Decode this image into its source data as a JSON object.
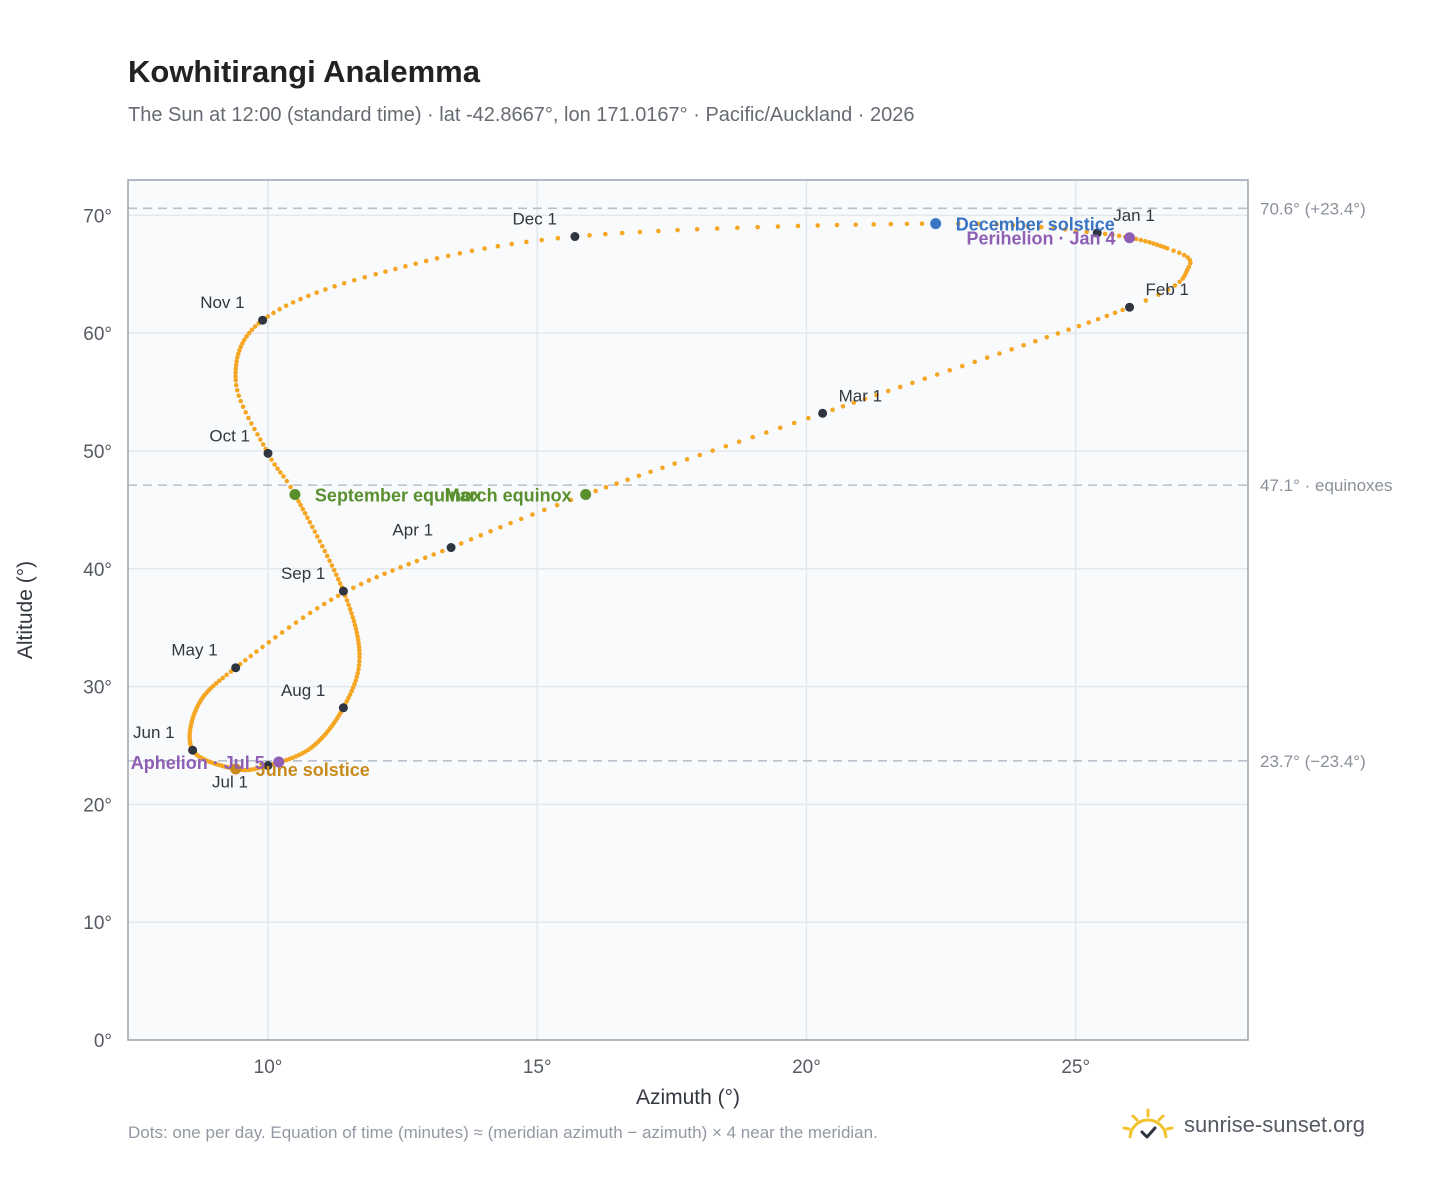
{
  "header": {
    "title": "Kowhitirangi Analemma",
    "subtitle": "The Sun at 12:00 (standard time) · lat -42.8667°, lon 171.0167° · Pacific/Auckland · 2026"
  },
  "footer": {
    "note": "Dots: one per day. Equation of time (minutes) ≈ (meridian azimuth − azimuth) × 4 near the meridian.",
    "brand": "sunrise-sunset.org",
    "brand_icon": "sun-checkmark-icon"
  },
  "colors": {
    "curve": "#f5a623",
    "month_dot": "#2f3540",
    "december_solstice": "#3a75c4",
    "june_solstice": "#c98a1a",
    "equinox": "#5a8f2e",
    "apsis": "#8e5fb5",
    "reference_line": "#b8c0c9",
    "plot_background": "#f8fafc",
    "frame": "#9aa3ae"
  },
  "chart_data": {
    "type": "scatter",
    "xlabel": "Azimuth (°)",
    "ylabel": "Altitude (°)",
    "xlim": [
      7.4,
      28.2
    ],
    "ylim": [
      0,
      73
    ],
    "x_ticks": [
      10,
      15,
      20,
      25
    ],
    "x_tick_labels": [
      "10°",
      "15°",
      "20°",
      "25°"
    ],
    "y_ticks": [
      0,
      10,
      20,
      30,
      40,
      50,
      60,
      70
    ],
    "y_tick_labels": [
      "0°",
      "10°",
      "20°",
      "30°",
      "40°",
      "50°",
      "60°",
      "70°"
    ],
    "grid": true,
    "reference_lines": [
      {
        "value": 70.6,
        "label": "70.6° (+23.4°)"
      },
      {
        "value": 47.1,
        "label": "47.1° · equinoxes"
      },
      {
        "value": 23.7,
        "label": "23.7° (−23.4°)"
      }
    ],
    "analemma_path": [
      {
        "date": "Jan 1",
        "az": 25.4,
        "alt": 68.5
      },
      {
        "date": "Jan 15",
        "az": 26.7,
        "alt": 67.2
      },
      {
        "date": "Jan 22",
        "az": 27.1,
        "alt": 65.6
      },
      {
        "date": "Feb 1",
        "az": 26.0,
        "alt": 62.2
      },
      {
        "date": "Mar 1",
        "az": 20.3,
        "alt": 53.2
      },
      {
        "date": "Mar 20",
        "az": 15.9,
        "alt": 46.3
      },
      {
        "date": "Apr 1",
        "az": 13.4,
        "alt": 41.8
      },
      {
        "date": "Apr 15",
        "az": 11.3,
        "alt": 37.7
      },
      {
        "date": "May 1",
        "az": 9.4,
        "alt": 31.6
      },
      {
        "date": "May 15",
        "az": 8.7,
        "alt": 28.4
      },
      {
        "date": "Jun 1",
        "az": 8.6,
        "alt": 24.6
      },
      {
        "date": "Jun 21",
        "az": 9.4,
        "alt": 23.0
      },
      {
        "date": "Jul 1",
        "az": 10.0,
        "alt": 23.3
      },
      {
        "date": "Jul 15",
        "az": 10.8,
        "alt": 24.8
      },
      {
        "date": "Aug 1",
        "az": 11.4,
        "alt": 28.2
      },
      {
        "date": "Aug 15",
        "az": 11.7,
        "alt": 32.5
      },
      {
        "date": "Sep 1",
        "az": 11.4,
        "alt": 38.1
      },
      {
        "date": "Sep 23",
        "az": 10.5,
        "alt": 46.3
      },
      {
        "date": "Oct 1",
        "az": 10.0,
        "alt": 49.8
      },
      {
        "date": "Oct 15",
        "az": 9.4,
        "alt": 56.0
      },
      {
        "date": "Nov 1",
        "az": 9.9,
        "alt": 61.1
      },
      {
        "date": "Nov 15",
        "az": 12.0,
        "alt": 65.0
      },
      {
        "date": "Dec 1",
        "az": 15.7,
        "alt": 68.2
      },
      {
        "date": "Dec 21",
        "az": 22.4,
        "alt": 69.3
      },
      {
        "date": "Jan 1",
        "az": 25.4,
        "alt": 68.5
      }
    ],
    "month_markers": [
      {
        "label": "Jan 1",
        "az": 25.4,
        "alt": 68.5,
        "anchor": "right"
      },
      {
        "label": "Feb 1",
        "az": 26.0,
        "alt": 62.2,
        "anchor": "right"
      },
      {
        "label": "Mar 1",
        "az": 20.3,
        "alt": 53.2,
        "anchor": "right"
      },
      {
        "label": "Apr 1",
        "az": 13.4,
        "alt": 41.8,
        "anchor": "left"
      },
      {
        "label": "May 1",
        "az": 9.4,
        "alt": 31.6,
        "anchor": "left"
      },
      {
        "label": "Jun 1",
        "az": 8.6,
        "alt": 24.6,
        "anchor": "left"
      },
      {
        "label": "Jul 1",
        "az": 10.0,
        "alt": 23.3,
        "anchor": "below"
      },
      {
        "label": "Aug 1",
        "az": 11.4,
        "alt": 28.2,
        "anchor": "left"
      },
      {
        "label": "Sep 1",
        "az": 11.4,
        "alt": 38.1,
        "anchor": "left"
      },
      {
        "label": "Oct 1",
        "az": 10.0,
        "alt": 49.8,
        "anchor": "left"
      },
      {
        "label": "Nov 1",
        "az": 9.9,
        "alt": 61.1,
        "anchor": "left"
      },
      {
        "label": "Dec 1",
        "az": 15.7,
        "alt": 68.2,
        "anchor": "left"
      }
    ],
    "events": [
      {
        "label": "December solstice",
        "az": 22.4,
        "alt": 69.3,
        "color": "#3a75c4",
        "anchor": "right"
      },
      {
        "label": "Perihelion · Jan 4",
        "az": 26.0,
        "alt": 68.1,
        "color": "#8e5fb5",
        "anchor": "left"
      },
      {
        "label": "March equinox",
        "az": 15.9,
        "alt": 46.3,
        "color": "#5a8f2e",
        "anchor": "left"
      },
      {
        "label": "September equinox",
        "az": 10.5,
        "alt": 46.3,
        "color": "#5a8f2e",
        "anchor": "right"
      },
      {
        "label": "June solstice",
        "az": 9.4,
        "alt": 23.0,
        "color": "#c98a1a",
        "anchor": "right"
      },
      {
        "label": "Aphelion · Jul 5",
        "az": 10.2,
        "alt": 23.6,
        "color": "#8e5fb5",
        "anchor": "left"
      }
    ]
  }
}
